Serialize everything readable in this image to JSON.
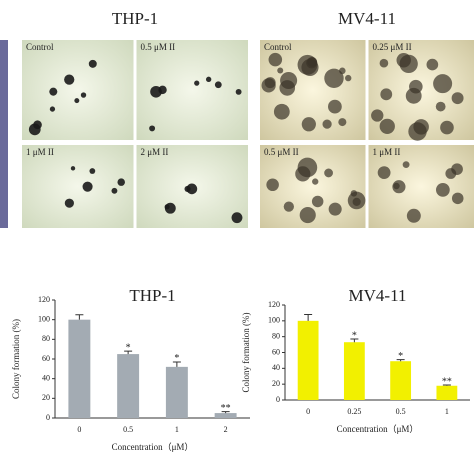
{
  "micrographs": [
    {
      "title": "THP-1",
      "panels": [
        "Control",
        "0.5 μM II",
        "1 μM II",
        "2 μM II"
      ]
    },
    {
      "title": "MV4-11",
      "panels": [
        "Control",
        "0.25 μM II",
        "0.5 μM II",
        "1 μM II"
      ]
    }
  ],
  "chart_data": [
    {
      "type": "bar",
      "title": "THP-1",
      "y_label": "Colony formation (%)",
      "x_label": "Concentration（μM）",
      "categories": [
        "0",
        "0.5",
        "1",
        "2"
      ],
      "values": [
        100,
        65,
        52,
        5
      ],
      "errors": [
        5,
        3,
        5,
        1.5
      ],
      "significance": [
        null,
        "*",
        "*",
        "**"
      ],
      "color": "#a3abb3",
      "ylim": [
        0,
        120
      ],
      "yticks": [
        0,
        20,
        40,
        60,
        80,
        100,
        120
      ]
    },
    {
      "type": "bar",
      "title": "MV4-11",
      "y_label": "Colony formation (%)",
      "x_label": "Concentration（μM）",
      "categories": [
        "0",
        "0.25",
        "0.5",
        "1"
      ],
      "values": [
        100,
        73,
        49,
        18
      ],
      "errors": [
        8,
        4,
        2,
        1
      ],
      "significance": [
        null,
        "*",
        "*",
        "**"
      ],
      "color": "#f2f000",
      "ylim": [
        0,
        120
      ],
      "yticks": [
        0,
        20,
        40,
        60,
        80,
        100,
        120
      ]
    }
  ]
}
